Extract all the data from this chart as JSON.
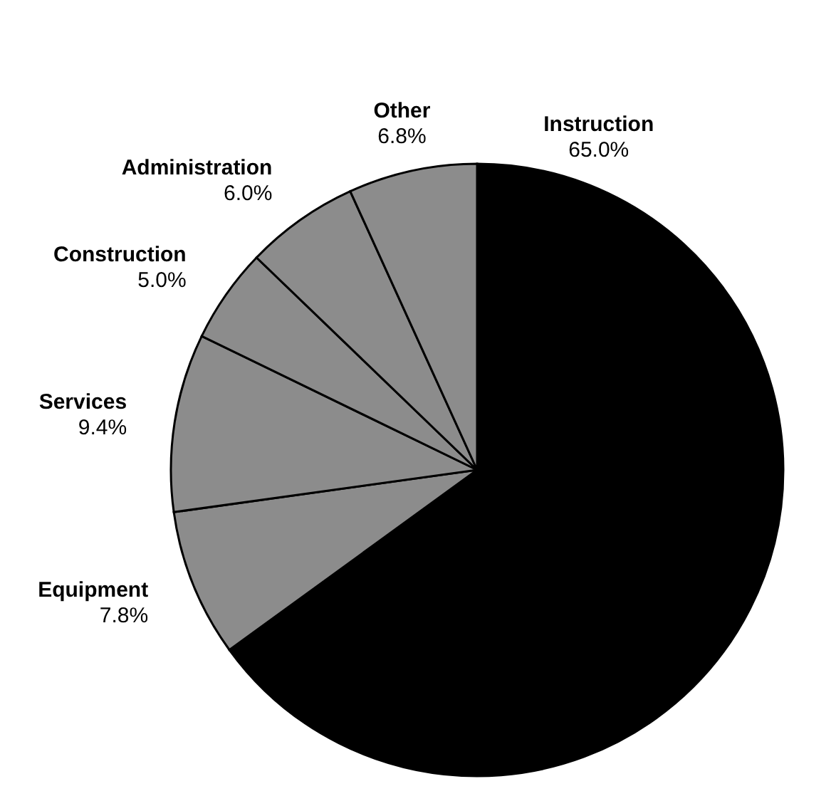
{
  "chart_data": {
    "type": "pie",
    "categories": [
      "Instruction",
      "Equipment",
      "Services",
      "Construction",
      "Administration",
      "Other"
    ],
    "values": [
      65.0,
      7.8,
      9.4,
      5.0,
      6.0,
      6.8
    ],
    "colors": [
      "#000000",
      "#8c8c8c",
      "#8c8c8c",
      "#8c8c8c",
      "#8c8c8c",
      "#8c8c8c"
    ],
    "value_labels": [
      "65.0%",
      "7.8%",
      "9.4%",
      "5.0%",
      "6.0%",
      "6.8%"
    ]
  }
}
